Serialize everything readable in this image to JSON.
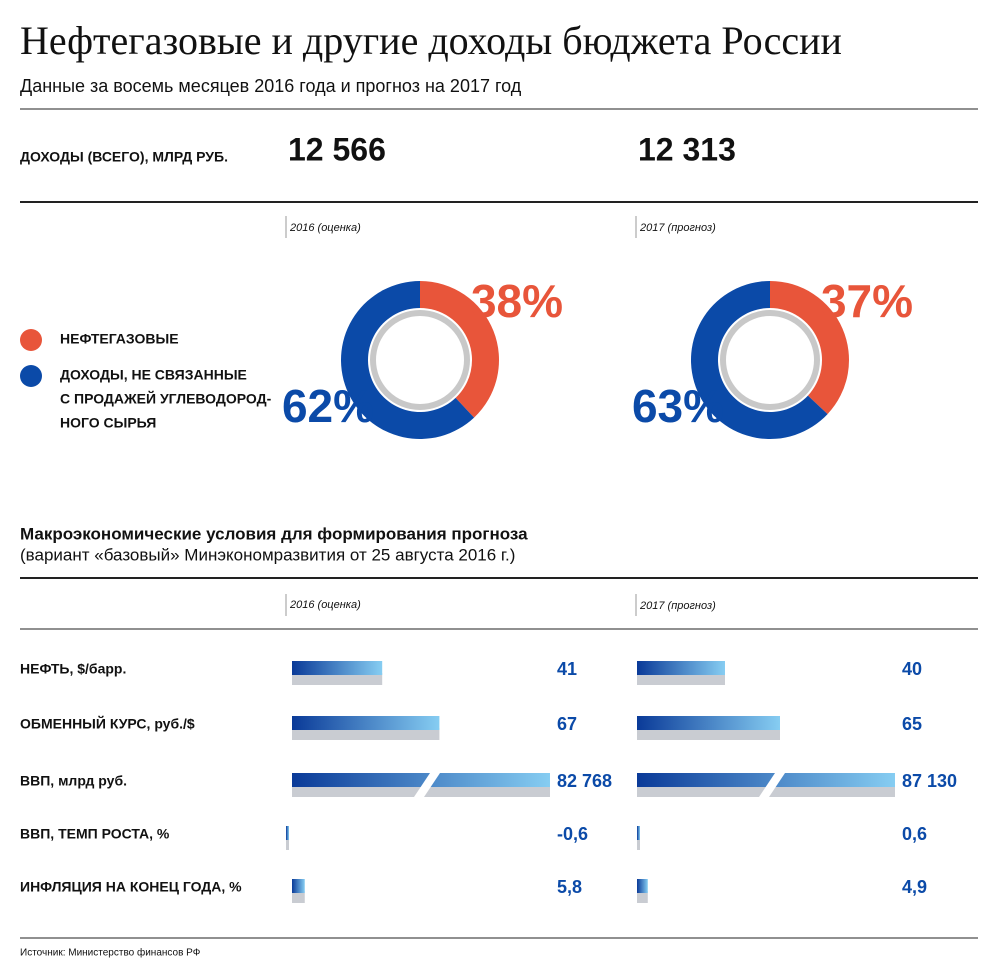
{
  "header": {
    "title": "Нефтегазовые и другие доходы бюджета России",
    "subtitle": "Данные за восемь месяцев 2016 года и прогноз на 2017 год"
  },
  "periods": [
    "2016 (оценка)",
    "2017 (прогноз)"
  ],
  "revenue": {
    "label": "ДОХОДЫ (ВСЕГО), МЛРД РУБ.",
    "values": [
      "12 566",
      "12 313"
    ]
  },
  "legend": [
    {
      "label_lines": [
        "НЕФТЕГАЗОВЫЕ"
      ],
      "color": "#e8553a"
    },
    {
      "label_lines": [
        "ДОХОДЫ, НЕ СВЯЗАННЫЕ",
        "С ПРОДАЖЕЙ УГЛЕВОДОРОД-",
        "НОГО СЫРЬЯ"
      ],
      "color": "#0b4aa8"
    }
  ],
  "donuts": [
    {
      "values": [
        38,
        62
      ],
      "value_labels": [
        "38%",
        "62%"
      ]
    },
    {
      "values": [
        37,
        63
      ],
      "value_labels": [
        "37%",
        "63%"
      ]
    }
  ],
  "macro": {
    "title": "Макроэкономические условия для формирования прогноза",
    "subtitle": "(вариант «базовый» Минэкономразвития от 25 августа 2016 г.)",
    "rows": [
      {
        "label": "НЕФТЬ, $/барр.",
        "values": [
          41,
          40
        ]
      },
      {
        "label": "ОБМЕННЫЙ КУРС, руб./$",
        "values": [
          67,
          65
        ]
      },
      {
        "label": "ВВП, млрд руб.",
        "values": [
          82768,
          87130
        ],
        "value_labels": [
          "82 768",
          "87 130"
        ]
      },
      {
        "label": "ВВП, ТЕМП РОСТА, %",
        "values": [
          -0.6,
          0.6
        ],
        "value_labels": [
          "-0,6",
          "0,6"
        ]
      },
      {
        "label": "ИНФЛЯЦИЯ НА КОНЕЦ ГОДА, %",
        "values": [
          5.8,
          4.9
        ],
        "value_labels": [
          "5,8",
          "4,9"
        ]
      }
    ]
  },
  "source": "Источник: Министерство финансов РФ"
}
